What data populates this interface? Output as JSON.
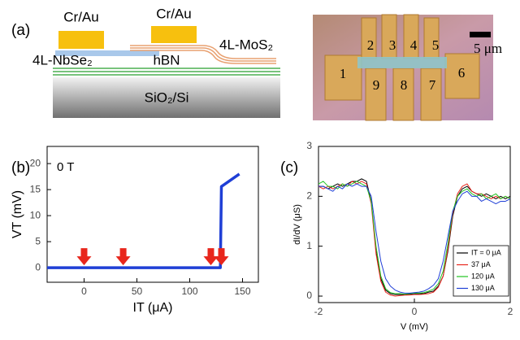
{
  "diagram": {
    "panel_a": "(a)",
    "panel_b": "(b)",
    "panel_c": "(c)",
    "contact_left": "Cr/Au",
    "contact_right": "Cr/Au",
    "nbse2": "4L-NbSe₂",
    "mos2": "4L-MoS₂",
    "hbn": "hBN",
    "substrate": "SiO₂/Si",
    "scale_bar": "5 μm",
    "electrodes": [
      "1",
      "2",
      "3",
      "4",
      "5",
      "6",
      "7",
      "8",
      "9"
    ]
  },
  "chart_data": [
    {
      "type": "line",
      "annotation": "0 T",
      "xlabel": "IT (μA)",
      "ylabel": "VT (mV)",
      "xlim": [
        -35,
        165
      ],
      "ylim": [
        -2.8,
        23.3
      ],
      "xticks": [
        0,
        50,
        100,
        150
      ],
      "yticks": [
        0,
        5,
        10,
        15,
        20
      ],
      "x": [
        -35,
        129,
        130,
        147
      ],
      "series": [
        {
          "color": "#1f3fd6",
          "values": [
            0,
            0,
            15.6,
            18
          ]
        }
      ],
      "arrows_x": [
        0,
        37,
        120,
        130
      ],
      "arrow_color": "#e8261c"
    },
    {
      "type": "line",
      "xlabel": "V (mV)",
      "ylabel": "dI/dV (μS)",
      "xlim": [
        -2,
        2
      ],
      "ylim": [
        -0.13,
        3
      ],
      "xticks": [
        -2,
        0,
        2
      ],
      "yticks": [
        0,
        1,
        2,
        3
      ],
      "x": [
        -2,
        -1.9,
        -1.8,
        -1.7,
        -1.6,
        -1.5,
        -1.4,
        -1.3,
        -1.2,
        -1.1,
        -1,
        -0.9,
        -0.8,
        -0.7,
        -0.6,
        -0.5,
        -0.4,
        -0.3,
        -0.2,
        -0.1,
        0,
        0.1,
        0.2,
        0.3,
        0.4,
        0.5,
        0.6,
        0.7,
        0.8,
        0.9,
        1,
        1.1,
        1.2,
        1.3,
        1.4,
        1.5,
        1.6,
        1.7,
        1.8,
        1.9,
        2
      ],
      "series": [
        {
          "name": "IT = 0 μA",
          "color": "#000000",
          "values": [
            2.2,
            2.2,
            2.15,
            2.2,
            2.25,
            2.2,
            2.25,
            2.3,
            2.3,
            2.35,
            2.3,
            1.9,
            0.9,
            0.35,
            0.12,
            0.05,
            0.03,
            0.03,
            0.03,
            0.04,
            0.05,
            0.05,
            0.05,
            0.08,
            0.1,
            0.2,
            0.4,
            0.9,
            1.6,
            2,
            2.15,
            2.2,
            2.1,
            2.05,
            2,
            2.05,
            2,
            1.95,
            2,
            1.95,
            2
          ]
        },
        {
          "name": "37 μA",
          "color": "#e8261c",
          "values": [
            2.2,
            2.15,
            2.2,
            2.15,
            2.2,
            2.25,
            2.2,
            2.3,
            2.25,
            2.3,
            2.25,
            1.85,
            0.85,
            0.3,
            0.08,
            0.02,
            0,
            0.01,
            0.02,
            0.02,
            0.03,
            0.03,
            0.04,
            0.05,
            0.08,
            0.18,
            0.4,
            0.95,
            1.65,
            2.05,
            2.2,
            2.25,
            2.1,
            2.05,
            2.05,
            2,
            1.95,
            2,
            1.95,
            2,
            1.95
          ]
        },
        {
          "name": "120 μA",
          "color": "#22c422",
          "values": [
            2.25,
            2.3,
            2.2,
            2.2,
            2.15,
            2.25,
            2.2,
            2.25,
            2.3,
            2.25,
            2.2,
            1.9,
            1,
            0.4,
            0.15,
            0.07,
            0.05,
            0.05,
            0.04,
            0.05,
            0.06,
            0.06,
            0.07,
            0.1,
            0.14,
            0.25,
            0.5,
            1.05,
            1.7,
            2,
            2.1,
            2.15,
            2.05,
            2,
            2.05,
            1.95,
            2,
            2.05,
            1.95,
            2,
            1.95
          ]
        },
        {
          "name": "130 μA",
          "color": "#1f3fd6",
          "values": [
            2.2,
            2.2,
            2.15,
            2.1,
            2.2,
            2.15,
            2.25,
            2.2,
            2.25,
            2.2,
            2.2,
            2,
            1.3,
            0.7,
            0.35,
            0.2,
            0.12,
            0.08,
            0.06,
            0.06,
            0.07,
            0.08,
            0.1,
            0.15,
            0.22,
            0.35,
            0.7,
            1.2,
            1.7,
            1.9,
            2.05,
            2.1,
            2,
            2,
            1.9,
            1.95,
            1.9,
            1.85,
            1.9,
            1.9,
            1.95
          ]
        }
      ]
    }
  ]
}
